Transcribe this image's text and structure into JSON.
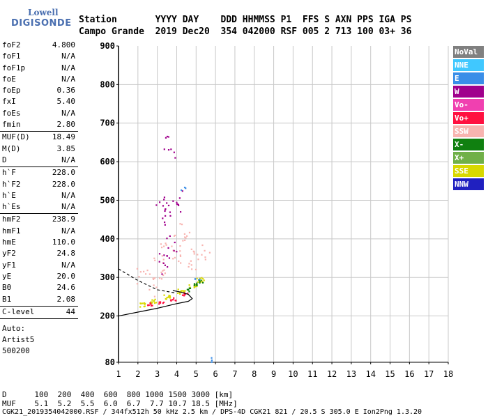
{
  "logo": {
    "line1": "Lowell",
    "line2": "DIGISONDE"
  },
  "header": {
    "row1": "Station       YYYY DAY    DDD HHMMSS P1  FFS S AXN PPS IGA PS",
    "row2": "Campo Grande  2019 Dec20  354 042000 RSF 005 2 713 100 03+ 36"
  },
  "params": [
    [
      {
        "k": "foF2",
        "v": "4.800"
      },
      {
        "k": "foF1",
        "v": "N/A"
      },
      {
        "k": "foF1p",
        "v": "N/A"
      },
      {
        "k": "foE",
        "v": "N/A"
      },
      {
        "k": "foEp",
        "v": "0.36"
      },
      {
        "k": "fxI",
        "v": "5.40"
      },
      {
        "k": "foEs",
        "v": "N/A"
      },
      {
        "k": "fmin",
        "v": "2.80"
      }
    ],
    [
      {
        "k": "MUF(D)",
        "v": "18.49"
      },
      {
        "k": "M(D)",
        "v": "3.85"
      },
      {
        "k": "D",
        "v": "N/A"
      }
    ],
    [
      {
        "k": "h`F",
        "v": "228.0"
      },
      {
        "k": "h`F2",
        "v": "228.0"
      },
      {
        "k": "h`E",
        "v": "N/A"
      },
      {
        "k": "h`Es",
        "v": "N/A"
      }
    ],
    [
      {
        "k": "hmF2",
        "v": "238.9"
      },
      {
        "k": "hmF1",
        "v": "N/A"
      },
      {
        "k": "hmE",
        "v": "110.0"
      },
      {
        "k": "yF2",
        "v": "24.8"
      },
      {
        "k": "yF1",
        "v": "N/A"
      },
      {
        "k": "yE",
        "v": "20.0"
      },
      {
        "k": "B0",
        "v": "24.6"
      },
      {
        "k": "B1",
        "v": "2.08"
      }
    ],
    [
      {
        "k": "C-level",
        "v": "44"
      }
    ]
  ],
  "autoscaling": [
    "Auto:",
    "Artist5",
    "500200"
  ],
  "legend": [
    {
      "label": "NoVal",
      "color": "#808080"
    },
    {
      "label": "NNE",
      "color": "#40c8ff"
    },
    {
      "label": "E",
      "color": "#3a8ee8"
    },
    {
      "label": "W",
      "color": "#a0008c"
    },
    {
      "label": "Vo-",
      "color": "#f040b0"
    },
    {
      "label": "Vo+",
      "color": "#ff1040"
    },
    {
      "label": "SSW",
      "color": "#f8b4b0"
    },
    {
      "label": "X-",
      "color": "#108010"
    },
    {
      "label": "X+",
      "color": "#70b048"
    },
    {
      "label": "SSE",
      "color": "#d8d800"
    },
    {
      "label": "NNW",
      "color": "#2020c0"
    }
  ],
  "footer": {
    "row1": "D      100  200  400  600  800 1000 1500 3000 [km]",
    "row2": "MUF    5.1  5.2  5.5  6.0  6.7  7.7 10.7 18.5 [MHz]",
    "row3": "CGK21_2019354042000.RSF / 344fx512h 50 kHz 2.5 km / DPS-4D CGK21 821 / 20.5 S 305.0 E Ion2Png 1.3.20"
  },
  "chart_data": {
    "type": "scatter",
    "title": "",
    "xlabel": "",
    "ylabel": "",
    "xlim": [
      1,
      18
    ],
    "ylim": [
      80,
      900
    ],
    "x_ticks": [
      1,
      2,
      3,
      4,
      5,
      6,
      7,
      8,
      9,
      10,
      11,
      12,
      13,
      14,
      15,
      16,
      17,
      18
    ],
    "y_ticks": [
      80,
      200,
      300,
      400,
      500,
      600,
      700,
      800,
      900
    ],
    "grid": true,
    "legend_placement": "right",
    "clusters": [
      {
        "name": "SSW",
        "points": [
          [
            3.1,
            330
          ],
          [
            3.5,
            390
          ],
          [
            4.2,
            420
          ],
          [
            4.8,
            350
          ],
          [
            5.3,
            360
          ],
          [
            2.3,
            300
          ],
          [
            3.0,
            280
          ],
          [
            4.0,
            360
          ]
        ]
      },
      {
        "name": "W",
        "points": [
          [
            3.3,
            340
          ],
          [
            3.7,
            380
          ],
          [
            3.5,
            460
          ],
          [
            4.0,
            500
          ],
          [
            3.6,
            640
          ],
          [
            3.2,
            480
          ]
        ]
      },
      {
        "name": "SSE",
        "points": [
          [
            2.2,
            230
          ],
          [
            2.8,
            240
          ],
          [
            3.5,
            250
          ],
          [
            4.2,
            265
          ],
          [
            4.8,
            280
          ],
          [
            5.2,
            295
          ]
        ]
      },
      {
        "name": "Vo+",
        "points": [
          [
            2.6,
            232
          ],
          [
            3.2,
            236
          ],
          [
            3.8,
            245
          ],
          [
            4.4,
            258
          ]
        ]
      },
      {
        "name": "X-",
        "points": [
          [
            4.6,
            270
          ],
          [
            4.9,
            282
          ],
          [
            5.2,
            292
          ]
        ]
      },
      {
        "name": "E",
        "points": [
          [
            4.3,
            540
          ],
          [
            5.0,
            300
          ],
          [
            5.7,
            83
          ]
        ]
      }
    ],
    "trace_o": [
      [
        1,
        200
      ],
      [
        2,
        210
      ],
      [
        3,
        220
      ],
      [
        4,
        232
      ],
      [
        4.6,
        238
      ],
      [
        4.8,
        245
      ],
      [
        4.6,
        256
      ],
      [
        4.2,
        262
      ],
      [
        3.8,
        266
      ]
    ],
    "trace_dashed": [
      [
        1,
        322
      ],
      [
        2,
        292
      ],
      [
        3,
        268
      ],
      [
        3.9,
        260
      ]
    ]
  }
}
